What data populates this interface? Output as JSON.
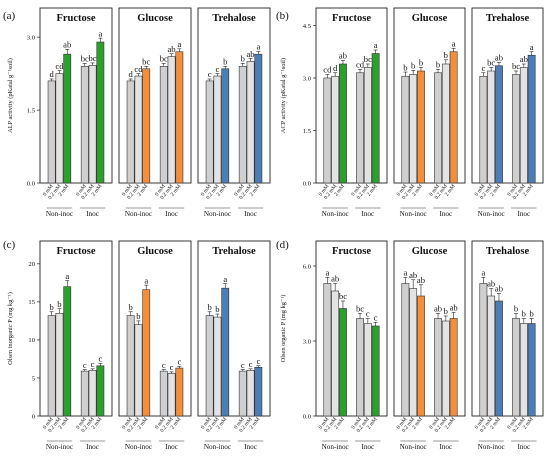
{
  "chart_data": [
    {
      "type": "bar",
      "panel": "(a)",
      "ylabel": "ALP activity (pKatal g⁻¹soil)",
      "ylim": [
        0,
        3.6
      ],
      "yticks": [
        "0.0",
        "1.5",
        "3.0"
      ],
      "ytick_values": [
        0,
        1.5,
        3.0
      ],
      "categories": [
        "0 mM",
        "0.2 mM",
        "2 mM"
      ],
      "groups": [
        "Non-inoc",
        "Inoc"
      ],
      "facets": [
        {
          "title": "Fructose",
          "color": "#2ca02c",
          "values": [
            [
              2.1,
              2.25,
              2.65
            ],
            [
              2.4,
              2.42,
              2.9
            ]
          ],
          "errors": [
            [
              0.04,
              0.06,
              0.1
            ],
            [
              0.06,
              0.05,
              0.08
            ]
          ],
          "letters": [
            [
              "d",
              "cd",
              "ab"
            ],
            [
              "bc",
              "bc",
              "a"
            ]
          ]
        },
        {
          "title": "Glucose",
          "color": "#f28e3c",
          "values": [
            [
              2.1,
              2.2,
              2.35
            ],
            [
              2.4,
              2.6,
              2.7
            ]
          ],
          "errors": [
            [
              0.04,
              0.05,
              0.05
            ],
            [
              0.06,
              0.06,
              0.06
            ]
          ],
          "letters": [
            [
              "d",
              "cd",
              "bc"
            ],
            [
              "bc",
              "ab",
              "a"
            ]
          ]
        },
        {
          "title": "Trehalose",
          "color": "#4a7eb5",
          "values": [
            [
              2.1,
              2.2,
              2.35
            ],
            [
              2.4,
              2.5,
              2.65
            ]
          ],
          "errors": [
            [
              0.04,
              0.05,
              0.05
            ],
            [
              0.06,
              0.06,
              0.06
            ]
          ],
          "letters": [
            [
              "c",
              "c",
              "b"
            ],
            [
              "b",
              "ab",
              "a"
            ]
          ]
        }
      ]
    },
    {
      "type": "bar",
      "panel": "(b)",
      "ylabel": "ACP activity (pKatal g⁻¹soil)",
      "ylim": [
        0,
        5.0
      ],
      "yticks": [
        "0.0",
        "1.5",
        "3.0",
        "4.5"
      ],
      "ytick_values": [
        0,
        1.5,
        3.0,
        4.5
      ],
      "categories": [
        "0 mM",
        "0.2 mM",
        "2 mM"
      ],
      "groups": [
        "Non-inoc",
        "Inoc"
      ],
      "facets": [
        {
          "title": "Fructose",
          "color": "#2ca02c",
          "values": [
            [
              3.0,
              3.05,
              3.4
            ],
            [
              3.15,
              3.3,
              3.7
            ]
          ],
          "errors": [
            [
              0.1,
              0.1,
              0.1
            ],
            [
              0.1,
              0.1,
              0.1
            ]
          ],
          "letters": [
            [
              "cd",
              "d",
              "ab"
            ],
            [
              "cd",
              "bc",
              "a"
            ]
          ]
        },
        {
          "title": "Glucose",
          "color": "#f28e3c",
          "values": [
            [
              3.05,
              3.1,
              3.2
            ],
            [
              3.15,
              3.4,
              3.75
            ]
          ],
          "errors": [
            [
              0.12,
              0.12,
              0.1
            ],
            [
              0.1,
              0.12,
              0.1
            ]
          ],
          "letters": [
            [
              "b",
              "b",
              "b"
            ],
            [
              "b",
              "b",
              "a"
            ]
          ]
        },
        {
          "title": "Trehalose",
          "color": "#4a7eb5",
          "values": [
            [
              3.05,
              3.2,
              3.35
            ],
            [
              3.1,
              3.3,
              3.65
            ]
          ],
          "errors": [
            [
              0.1,
              0.1,
              0.1
            ],
            [
              0.1,
              0.1,
              0.1
            ]
          ],
          "letters": [
            [
              "c",
              "bc",
              "ab"
            ],
            [
              "bc",
              "ab",
              "a"
            ]
          ]
        }
      ]
    },
    {
      "type": "bar",
      "panel": "(c)",
      "ylabel": "Olsen inorganic P (mg kg⁻¹)",
      "ylim": [
        0,
        23
      ],
      "yticks": [
        "0",
        "5",
        "10",
        "15",
        "20"
      ],
      "ytick_values": [
        0,
        5,
        10,
        15,
        20
      ],
      "categories": [
        "0 mM",
        "0.2 mM",
        "2 mM"
      ],
      "groups": [
        "Non-inoc",
        "Inoc"
      ],
      "facets": [
        {
          "title": "Fructose",
          "color": "#2ca02c",
          "values": [
            [
              13.2,
              13.5,
              17.0
            ],
            [
              5.9,
              6.0,
              6.6
            ]
          ],
          "errors": [
            [
              0.5,
              0.6,
              0.8
            ],
            [
              0.2,
              0.2,
              0.3
            ]
          ],
          "letters": [
            [
              "b",
              "b",
              "a"
            ],
            [
              "c",
              "c",
              "c"
            ]
          ]
        },
        {
          "title": "Glucose",
          "color": "#f28e3c",
          "values": [
            [
              13.2,
              12.0,
              16.6
            ],
            [
              5.9,
              5.6,
              6.3
            ]
          ],
          "errors": [
            [
              0.5,
              0.5,
              0.6
            ],
            [
              0.2,
              0.2,
              0.2
            ]
          ],
          "letters": [
            [
              "b",
              "b",
              "a"
            ],
            [
              "c",
              "c",
              "c"
            ]
          ]
        },
        {
          "title": "Trehalose",
          "color": "#4a7eb5",
          "values": [
            [
              13.2,
              13.0,
              16.8
            ],
            [
              5.9,
              6.0,
              6.4
            ]
          ],
          "errors": [
            [
              0.5,
              0.4,
              0.6
            ],
            [
              0.2,
              0.2,
              0.2
            ]
          ],
          "letters": [
            [
              "b",
              "b",
              "a"
            ],
            [
              "c",
              "c",
              "c"
            ]
          ]
        }
      ]
    },
    {
      "type": "bar",
      "panel": "(d)",
      "ylabel": "Olsen organic P (mg kg⁻¹)",
      "ylim": [
        0,
        7.0
      ],
      "yticks": [
        "0.0",
        "3.0",
        "6.0"
      ],
      "ytick_values": [
        0,
        3.0,
        6.0
      ],
      "categories": [
        "0 mM",
        "0.2 mM",
        "2 mM"
      ],
      "groups": [
        "Non-inoc",
        "Inoc"
      ],
      "facets": [
        {
          "title": "Fructose",
          "color": "#2ca02c",
          "values": [
            [
              5.3,
              5.0,
              4.3
            ],
            [
              3.9,
              3.7,
              3.6
            ]
          ],
          "errors": [
            [
              0.25,
              0.3,
              0.3
            ],
            [
              0.2,
              0.2,
              0.15
            ]
          ],
          "letters": [
            [
              "a",
              "ab",
              "bc"
            ],
            [
              "bc",
              "c",
              "c"
            ]
          ]
        },
        {
          "title": "Glucose",
          "color": "#f28e3c",
          "values": [
            [
              5.3,
              5.1,
              4.8
            ],
            [
              3.9,
              3.8,
              3.9
            ]
          ],
          "errors": [
            [
              0.25,
              0.35,
              0.45
            ],
            [
              0.2,
              0.2,
              0.25
            ]
          ],
          "letters": [
            [
              "a",
              "ab",
              "ab"
            ],
            [
              "ab",
              "b",
              "ab"
            ]
          ]
        },
        {
          "title": "Trehalose",
          "color": "#4a7eb5",
          "values": [
            [
              5.3,
              4.8,
              4.6
            ],
            [
              3.9,
              3.7,
              3.7
            ]
          ],
          "errors": [
            [
              0.25,
              0.3,
              0.3
            ],
            [
              0.2,
              0.2,
              0.2
            ]
          ],
          "letters": [
            [
              "a",
              "ab",
              "ab"
            ],
            [
              "b",
              "b",
              "b"
            ]
          ]
        }
      ]
    }
  ]
}
